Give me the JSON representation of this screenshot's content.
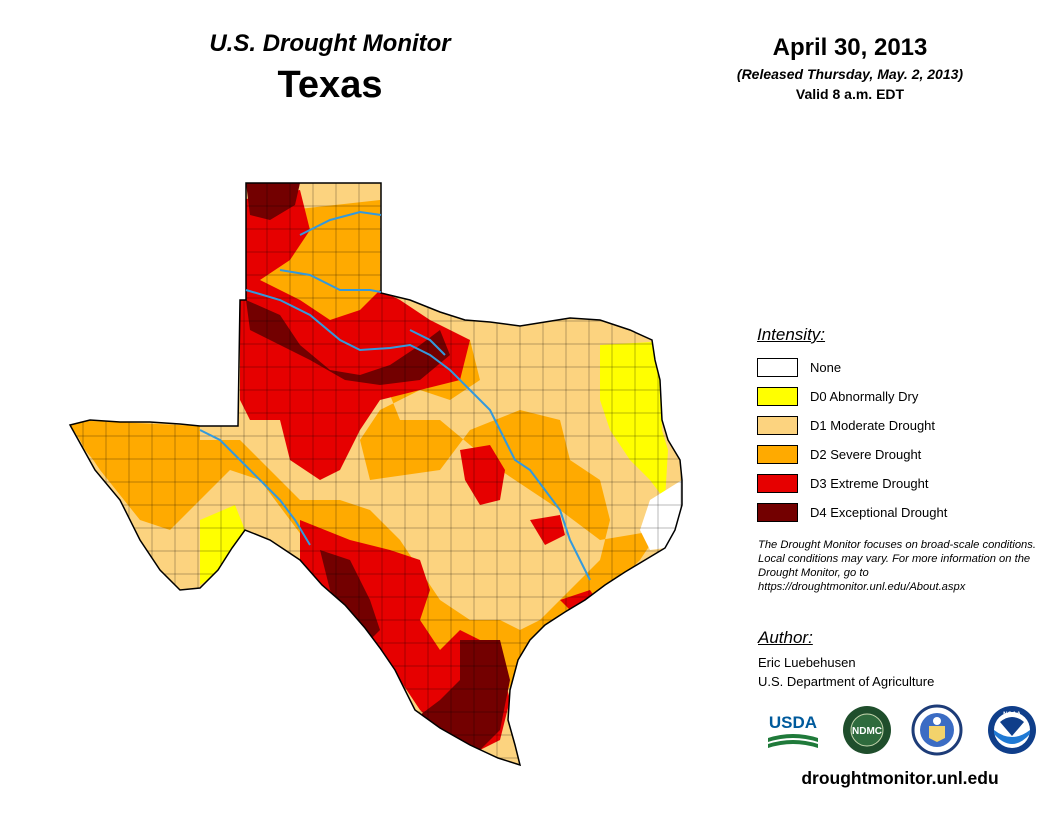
{
  "header": {
    "subtitle": "U.S. Drought Monitor",
    "title": "Texas",
    "date": "April 30, 2013",
    "released": "(Released Thursday, May. 2, 2013)",
    "valid": "Valid 8 a.m. EDT"
  },
  "legend": {
    "title": "Intensity:",
    "items": [
      {
        "label": "None",
        "color": "#ffffff"
      },
      {
        "label": "D0 Abnormally Dry",
        "color": "#ffff00"
      },
      {
        "label": "D1 Moderate Drought",
        "color": "#fcd37f"
      },
      {
        "label": "D2 Severe Drought",
        "color": "#ffaa00"
      },
      {
        "label": "D3 Extreme Drought",
        "color": "#e60000"
      },
      {
        "label": "D4 Exceptional Drought",
        "color": "#730000"
      }
    ]
  },
  "note": "The Drought Monitor focuses on broad-scale conditions. Local conditions may vary. For more information on the Drought Monitor, go to https://droughtmonitor.unl.edu/About.aspx",
  "author": {
    "title": "Author:",
    "name": "Eric Luebehusen",
    "org": "U.S. Department of Agriculture"
  },
  "logos": [
    {
      "name": "usda-logo",
      "text": "USDA"
    },
    {
      "name": "ndmc-logo",
      "text": "NDMC"
    },
    {
      "name": "doc-logo",
      "text": ""
    },
    {
      "name": "noaa-logo",
      "text": "NOAA"
    }
  ],
  "website": "droughtmonitor.unl.edu",
  "map_colors": {
    "none": "#ffffff",
    "d0": "#ffff00",
    "d1": "#fcd37f",
    "d2": "#ffaa00",
    "d3": "#e60000",
    "d4": "#730000",
    "river": "#3399dd",
    "border": "#000000"
  }
}
